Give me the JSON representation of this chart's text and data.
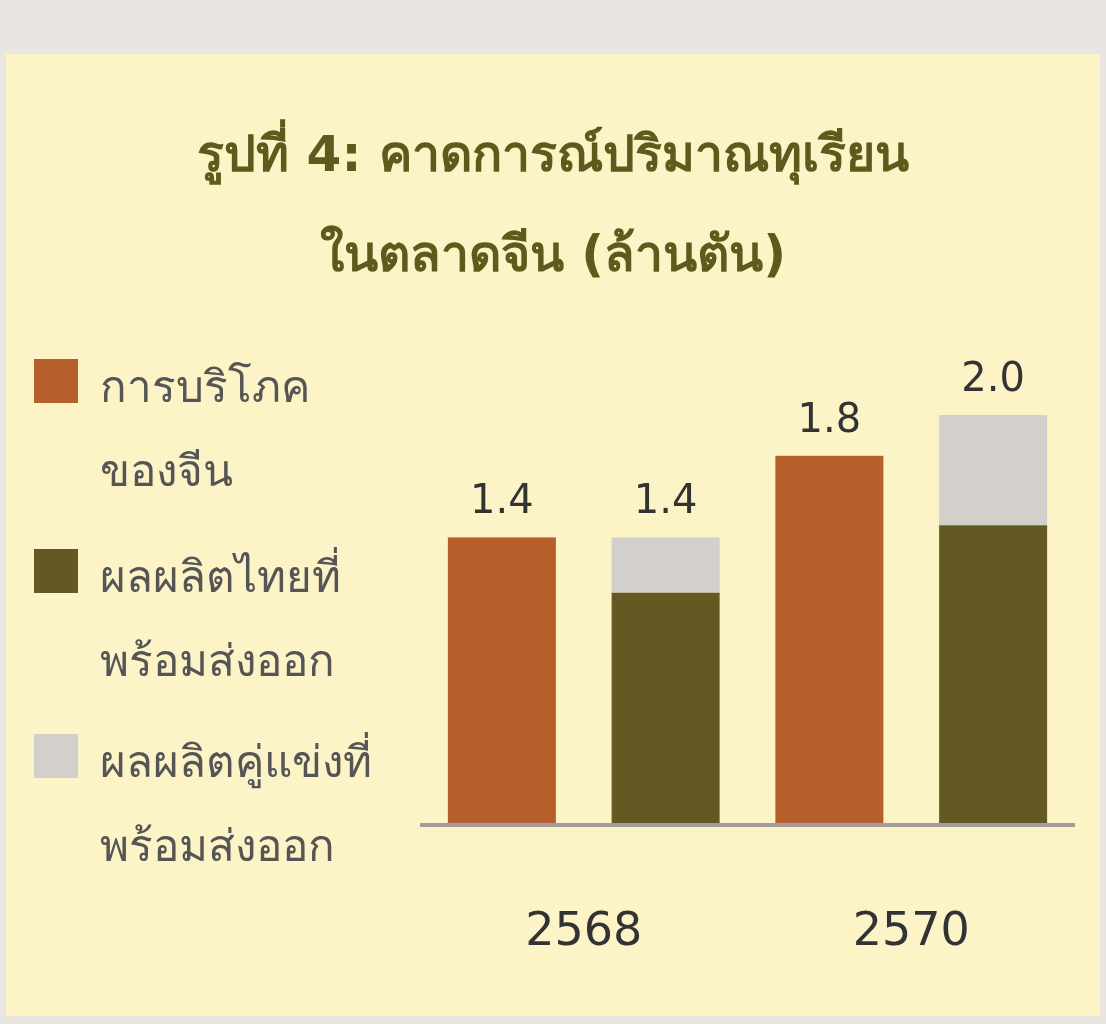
{
  "chart_data": {
    "type": "bar",
    "title": "รูปที่ 4: คาดการณ์ปริมาณทุเรียน\nในตลาดจีน (ล้านตัน)",
    "categories": [
      null,
      null,
      null,
      null
    ],
    "series": [
      {
        "name": "การบริโภคของจีน",
        "color": "#b55f2b",
        "values": [
          1.4,
          null,
          1.8,
          null
        ],
        "value_labels": [
          "1.4",
          null,
          "1.8",
          null
        ]
      },
      {
        "name": "ผลผลิตไทยที่พร้อมส่งออก",
        "color": "#625a22",
        "values": [
          null,
          1.13,
          null,
          1.46
        ]
      },
      {
        "name": "ผลผลิตคู่แข่งที่พร้อมส่งออก",
        "color": "#d3d0cc",
        "values": [
          null,
          0.27,
          null,
          0.54
        ]
      }
    ],
    "stacked": true,
    "totals": [
      null,
      "1.4",
      null,
      "2.0"
    ],
    "annotations": [
      "2568",
      "2570"
    ],
    "legend": "left"
  }
}
